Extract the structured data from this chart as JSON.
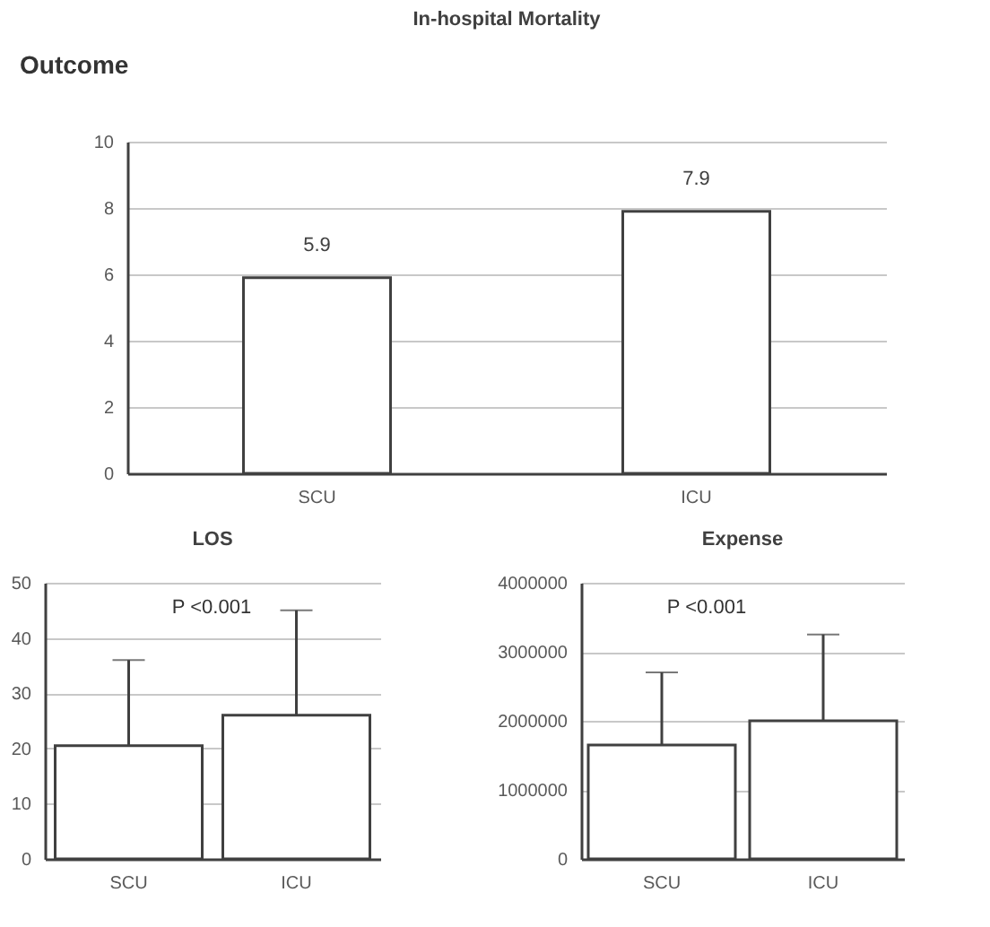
{
  "chart_data": [
    {
      "type": "bar",
      "title": "In-hospital Mortality",
      "annotations": [
        "Outcome"
      ],
      "categories": [
        "SCU",
        "ICU"
      ],
      "series": [
        {
          "color": "#ffffff",
          "values": [
            5.9,
            7.9
          ]
        }
      ],
      "ylim": [
        0,
        10
      ],
      "yticks": [
        0,
        2,
        4,
        6,
        8,
        10
      ],
      "grid": "y",
      "data_labels": true
    },
    {
      "type": "bar",
      "title": "LOS",
      "annotations": [
        "P <0.001"
      ],
      "categories": [
        "SCU",
        "ICU"
      ],
      "series": [
        {
          "color": "#ffffff",
          "values": [
            20.5,
            26
          ],
          "errors": [
            [
              20.5,
              36
            ],
            [
              26,
              45
            ]
          ]
        }
      ],
      "ylim": [
        0,
        50
      ],
      "yticks": [
        0,
        10,
        20,
        30,
        40,
        50
      ],
      "grid": "y"
    },
    {
      "type": "bar",
      "title": "Expense",
      "annotations": [
        "P <0.001"
      ],
      "categories": [
        "SCU",
        "ICU"
      ],
      "series": [
        {
          "color": "#ffffff",
          "values": [
            1650000,
            2000000
          ],
          "errors": [
            [
              1650000,
              2700000
            ],
            [
              2000000,
              3250000
            ]
          ]
        }
      ],
      "ylim": [
        0,
        4000000
      ],
      "yticks": [
        0,
        1000000,
        2000000,
        3000000,
        4000000
      ],
      "grid": "y"
    }
  ]
}
